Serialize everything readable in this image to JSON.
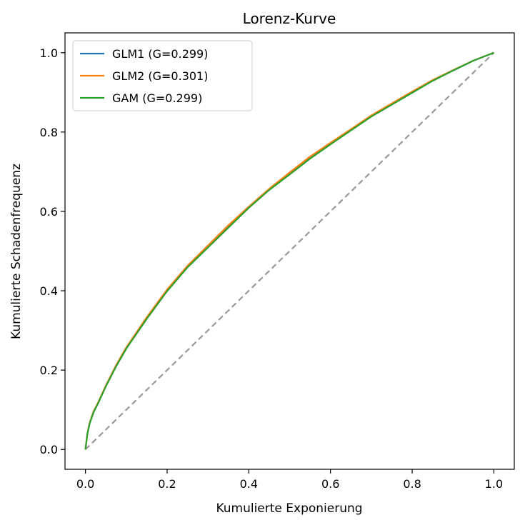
{
  "chart_data": {
    "type": "line",
    "title": "Lorenz-Kurve",
    "xlabel": "Kumulierte Exponierung",
    "ylabel": "Kumulierte Schadenfrequenz",
    "xlim": [
      -0.05,
      1.05
    ],
    "ylim": [
      -0.05,
      1.05
    ],
    "xticks": [
      0.0,
      0.2,
      0.4,
      0.6,
      0.8,
      1.0
    ],
    "yticks": [
      0.0,
      0.2,
      0.4,
      0.6,
      0.8,
      1.0
    ],
    "xtick_labels": [
      "0.0",
      "0.2",
      "0.4",
      "0.6",
      "0.8",
      "1.0"
    ],
    "ytick_labels": [
      "0.0",
      "0.2",
      "0.4",
      "0.6",
      "0.8",
      "1.0"
    ],
    "grid": false,
    "legend_position": "upper-left",
    "series": [
      {
        "name": "GLM1 (G=0.299)",
        "color": "#1f77b4",
        "x": [
          0,
          0.005,
          0.01,
          0.02,
          0.03,
          0.05,
          0.075,
          0.1,
          0.15,
          0.2,
          0.25,
          0.3,
          0.35,
          0.4,
          0.45,
          0.5,
          0.55,
          0.6,
          0.65,
          0.7,
          0.75,
          0.8,
          0.85,
          0.9,
          0.95,
          1.0
        ],
        "y": [
          0,
          0.04,
          0.065,
          0.095,
          0.115,
          0.16,
          0.21,
          0.255,
          0.33,
          0.4,
          0.46,
          0.51,
          0.56,
          0.61,
          0.655,
          0.695,
          0.735,
          0.77,
          0.805,
          0.84,
          0.87,
          0.9,
          0.93,
          0.955,
          0.98,
          1.0
        ]
      },
      {
        "name": "GLM2 (G=0.301)",
        "color": "#ff7f0e",
        "x": [
          0,
          0.005,
          0.01,
          0.02,
          0.03,
          0.05,
          0.075,
          0.1,
          0.15,
          0.2,
          0.25,
          0.3,
          0.35,
          0.4,
          0.45,
          0.5,
          0.55,
          0.6,
          0.65,
          0.7,
          0.75,
          0.8,
          0.85,
          0.9,
          0.95,
          1.0
        ],
        "y": [
          0,
          0.041,
          0.066,
          0.096,
          0.116,
          0.161,
          0.212,
          0.257,
          0.333,
          0.403,
          0.463,
          0.514,
          0.565,
          0.612,
          0.657,
          0.698,
          0.738,
          0.773,
          0.807,
          0.842,
          0.872,
          0.902,
          0.931,
          0.956,
          0.98,
          1.0
        ]
      },
      {
        "name": "GAM (G=0.299)",
        "color": "#2ca02c",
        "x": [
          0,
          0.005,
          0.01,
          0.02,
          0.03,
          0.05,
          0.075,
          0.1,
          0.15,
          0.2,
          0.25,
          0.3,
          0.35,
          0.4,
          0.45,
          0.5,
          0.55,
          0.6,
          0.65,
          0.7,
          0.75,
          0.8,
          0.85,
          0.9,
          0.95,
          1.0
        ],
        "y": [
          0,
          0.04,
          0.064,
          0.094,
          0.114,
          0.159,
          0.209,
          0.254,
          0.329,
          0.399,
          0.459,
          0.509,
          0.559,
          0.609,
          0.654,
          0.693,
          0.733,
          0.769,
          0.804,
          0.839,
          0.869,
          0.899,
          0.929,
          0.955,
          0.98,
          1.0
        ]
      }
    ],
    "reference_line": {
      "x": [
        0,
        1
      ],
      "y": [
        0,
        1
      ],
      "color": "#999999",
      "dash": "dashed"
    }
  }
}
